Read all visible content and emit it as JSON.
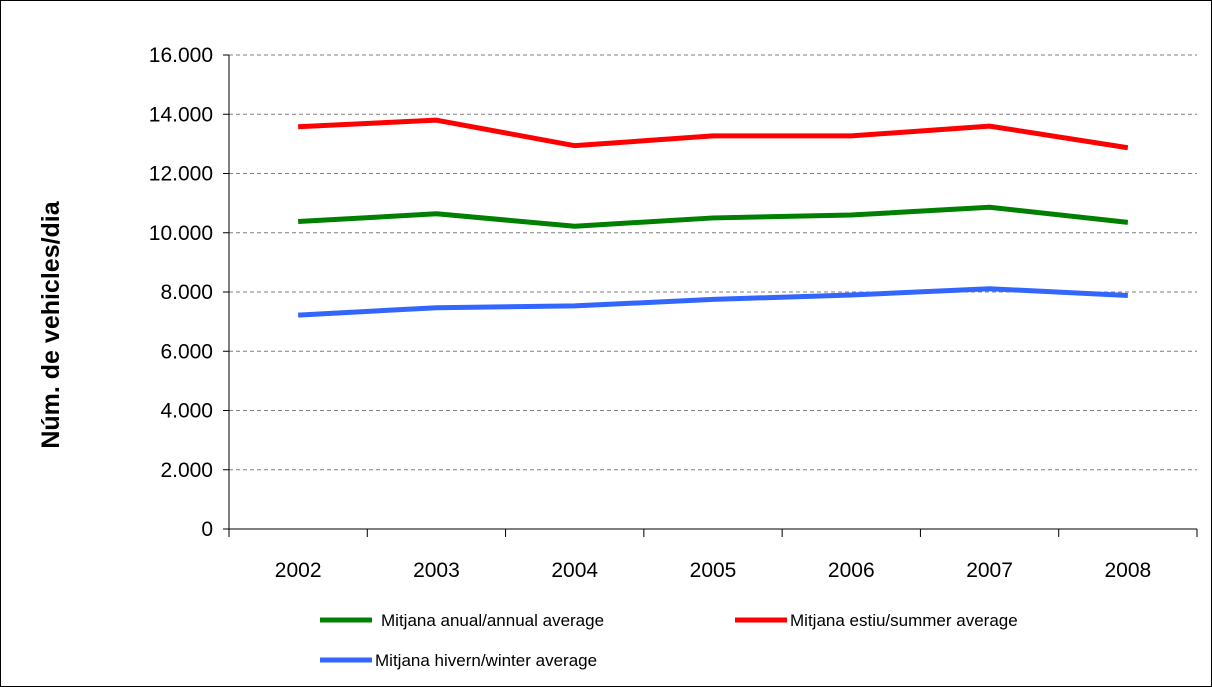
{
  "chart_data": {
    "type": "line",
    "title": "",
    "xlabel": "",
    "ylabel": "Núm. de vehicles/dia",
    "categories": [
      "2002",
      "2003",
      "2004",
      "2005",
      "2006",
      "2007",
      "2008"
    ],
    "ylim": [
      0,
      16000
    ],
    "yticks": [
      0,
      2000,
      4000,
      6000,
      8000,
      10000,
      12000,
      14000,
      16000
    ],
    "ytick_labels": [
      "0",
      "2.000",
      "4.000",
      "6.000",
      "8.000",
      "10.000",
      "12.000",
      "14.000",
      "16.000"
    ],
    "grid": "horizontal dashed",
    "legend_position": "bottom",
    "series": [
      {
        "name": "Mitjana anual/annual average",
        "color": "#008000",
        "values": [
          10380,
          10640,
          10220,
          10500,
          10600,
          10860,
          10350
        ]
      },
      {
        "name": "Mitjana estiu/summer average",
        "color": "#ff0000",
        "values": [
          13580,
          13800,
          12940,
          13270,
          13270,
          13600,
          12870
        ]
      },
      {
        "name": "Mitjana hivern/winter average",
        "color": "#3366ff",
        "values": [
          7220,
          7470,
          7530,
          7750,
          7900,
          8110,
          7880
        ]
      }
    ]
  }
}
